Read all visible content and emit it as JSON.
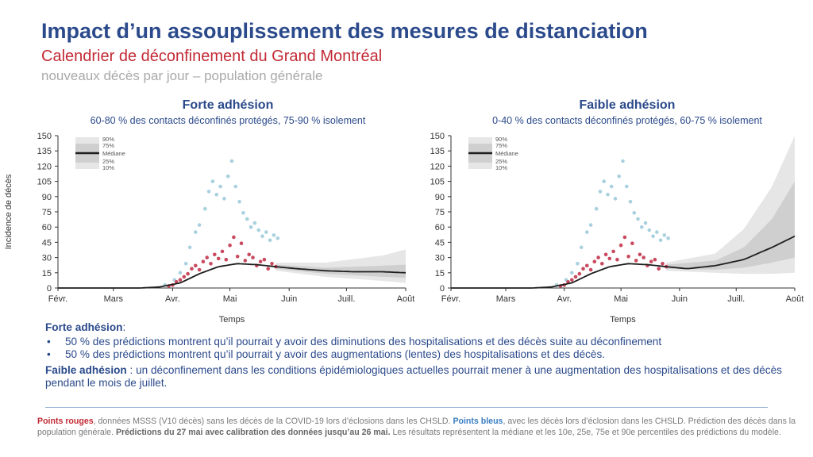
{
  "header": {
    "title": "Impact d’un assouplissement des mesures de distanciation",
    "subtitle": "Calendrier de déconfinement du Grand Montréal",
    "subsubtitle": "nouveaux décès par jour – population générale"
  },
  "colors": {
    "title": "#2b4a8b",
    "subtitle": "#c22a35",
    "red_points": "#c94a5e",
    "blue_points": "#a9d0de",
    "median_line": "#1e1e1e",
    "band_90": "#e6e6e6",
    "band_75": "#cfcfcf",
    "band_50": "#b3b3b3"
  },
  "chart_data": [
    {
      "type": "line",
      "title": "Forte adhésion",
      "subtitle": "60-80 % des contacts déconfinés protégés, 75-90 % isolement",
      "ylabel": "Incidence de décès",
      "xlabel": "Temps",
      "x_ticks": [
        "Févr.",
        "Mars",
        "Avr.",
        "Mai",
        "Juin",
        "Juill.",
        "Août"
      ],
      "y_ticks": [
        0,
        15,
        30,
        45,
        60,
        75,
        90,
        105,
        120,
        135,
        150
      ],
      "ylim": [
        0,
        150
      ],
      "xlim": [
        "2020-02-01",
        "2020-08-01"
      ],
      "legend": {
        "position": "top-left",
        "items": [
          "90%",
          "75%",
          "Médiane",
          "25%",
          "10%"
        ]
      },
      "median": [
        [
          "2020-02-01",
          0
        ],
        [
          "2020-03-15",
          0
        ],
        [
          "2020-03-25",
          1
        ],
        [
          "2020-04-05",
          5
        ],
        [
          "2020-04-15",
          14
        ],
        [
          "2020-04-25",
          21
        ],
        [
          "2020-05-05",
          24
        ],
        [
          "2020-05-15",
          23
        ],
        [
          "2020-05-25",
          21
        ],
        [
          "2020-06-05",
          19
        ],
        [
          "2020-06-20",
          17
        ],
        [
          "2020-07-05",
          16
        ],
        [
          "2020-07-20",
          16
        ],
        [
          "2020-08-01",
          15
        ]
      ],
      "q25": [
        [
          "2020-05-25",
          19
        ],
        [
          "2020-06-20",
          14
        ],
        [
          "2020-07-20",
          11
        ],
        [
          "2020-08-01",
          10
        ]
      ],
      "q75": [
        [
          "2020-05-25",
          23
        ],
        [
          "2020-06-20",
          20
        ],
        [
          "2020-07-20",
          22
        ],
        [
          "2020-08-01",
          23
        ]
      ],
      "q10": [
        [
          "2020-05-25",
          17
        ],
        [
          "2020-06-20",
          11
        ],
        [
          "2020-07-20",
          7
        ],
        [
          "2020-08-01",
          5
        ]
      ],
      "q90": [
        [
          "2020-05-25",
          25
        ],
        [
          "2020-06-20",
          25
        ],
        [
          "2020-07-20",
          32
        ],
        [
          "2020-08-01",
          38
        ]
      ],
      "red_points": [
        [
          "2020-03-30",
          2
        ],
        [
          "2020-04-01",
          3
        ],
        [
          "2020-04-03",
          6
        ],
        [
          "2020-04-05",
          8
        ],
        [
          "2020-04-07",
          11
        ],
        [
          "2020-04-09",
          14
        ],
        [
          "2020-04-11",
          19
        ],
        [
          "2020-04-13",
          22
        ],
        [
          "2020-04-15",
          18
        ],
        [
          "2020-04-17",
          26
        ],
        [
          "2020-04-19",
          30
        ],
        [
          "2020-04-21",
          24
        ],
        [
          "2020-04-23",
          33
        ],
        [
          "2020-04-25",
          29
        ],
        [
          "2020-04-27",
          36
        ],
        [
          "2020-04-29",
          28
        ],
        [
          "2020-05-01",
          42
        ],
        [
          "2020-05-03",
          50
        ],
        [
          "2020-05-05",
          31
        ],
        [
          "2020-05-07",
          44
        ],
        [
          "2020-05-09",
          27
        ],
        [
          "2020-05-11",
          33
        ],
        [
          "2020-05-13",
          30
        ],
        [
          "2020-05-15",
          22
        ],
        [
          "2020-05-17",
          26
        ],
        [
          "2020-05-19",
          28
        ],
        [
          "2020-05-21",
          19
        ],
        [
          "2020-05-23",
          24
        ],
        [
          "2020-05-25",
          21
        ]
      ],
      "blue_points": [
        [
          "2020-03-28",
          3
        ],
        [
          "2020-04-02",
          8
        ],
        [
          "2020-04-05",
          15
        ],
        [
          "2020-04-08",
          24
        ],
        [
          "2020-04-10",
          40
        ],
        [
          "2020-04-13",
          55
        ],
        [
          "2020-04-15",
          62
        ],
        [
          "2020-04-18",
          78
        ],
        [
          "2020-04-20",
          95
        ],
        [
          "2020-04-22",
          105
        ],
        [
          "2020-04-24",
          92
        ],
        [
          "2020-04-26",
          100
        ],
        [
          "2020-04-28",
          88
        ],
        [
          "2020-04-30",
          110
        ],
        [
          "2020-05-02",
          125
        ],
        [
          "2020-05-04",
          100
        ],
        [
          "2020-05-06",
          85
        ],
        [
          "2020-05-08",
          74
        ],
        [
          "2020-05-10",
          68
        ],
        [
          "2020-05-12",
          60
        ],
        [
          "2020-05-14",
          64
        ],
        [
          "2020-05-16",
          57
        ],
        [
          "2020-05-18",
          51
        ],
        [
          "2020-05-20",
          55
        ],
        [
          "2020-05-22",
          47
        ],
        [
          "2020-05-24",
          52
        ],
        [
          "2020-05-26",
          49
        ]
      ]
    },
    {
      "type": "line",
      "title": "Faible adhésion",
      "subtitle": "0-40 % des contacts déconfinés protégés, 60-75 % isolement",
      "ylabel": "",
      "xlabel": "Temps",
      "x_ticks": [
        "Févr.",
        "Mars",
        "Avr.",
        "Mai",
        "Juin",
        "Juill.",
        "Août"
      ],
      "y_ticks": [
        0,
        15,
        30,
        45,
        60,
        75,
        90,
        105,
        120,
        135,
        150
      ],
      "ylim": [
        0,
        150
      ],
      "xlim": [
        "2020-02-01",
        "2020-08-01"
      ],
      "legend": {
        "position": "top-left",
        "items": [
          "90%",
          "75%",
          "Médiane",
          "25%",
          "10%"
        ]
      },
      "median": [
        [
          "2020-02-01",
          0
        ],
        [
          "2020-03-15",
          0
        ],
        [
          "2020-03-25",
          1
        ],
        [
          "2020-04-05",
          5
        ],
        [
          "2020-04-15",
          14
        ],
        [
          "2020-04-25",
          21
        ],
        [
          "2020-05-05",
          24
        ],
        [
          "2020-05-15",
          23
        ],
        [
          "2020-05-25",
          21
        ],
        [
          "2020-06-05",
          19
        ],
        [
          "2020-06-20",
          22
        ],
        [
          "2020-07-05",
          28
        ],
        [
          "2020-07-20",
          40
        ],
        [
          "2020-08-01",
          51
        ]
      ],
      "q25": [
        [
          "2020-05-25",
          19
        ],
        [
          "2020-06-20",
          18
        ],
        [
          "2020-07-05",
          20
        ],
        [
          "2020-07-20",
          25
        ],
        [
          "2020-08-01",
          30
        ]
      ],
      "q75": [
        [
          "2020-05-25",
          23
        ],
        [
          "2020-06-20",
          27
        ],
        [
          "2020-07-05",
          40
        ],
        [
          "2020-07-20",
          68
        ],
        [
          "2020-08-01",
          105
        ]
      ],
      "q10": [
        [
          "2020-05-25",
          17
        ],
        [
          "2020-06-20",
          15
        ],
        [
          "2020-07-05",
          14
        ],
        [
          "2020-07-20",
          14
        ],
        [
          "2020-08-01",
          15
        ]
      ],
      "q90": [
        [
          "2020-05-25",
          25
        ],
        [
          "2020-06-20",
          34
        ],
        [
          "2020-07-05",
          58
        ],
        [
          "2020-07-20",
          100
        ],
        [
          "2020-08-01",
          150
        ]
      ],
      "red_points": [
        [
          "2020-03-30",
          2
        ],
        [
          "2020-04-01",
          3
        ],
        [
          "2020-04-03",
          6
        ],
        [
          "2020-04-05",
          8
        ],
        [
          "2020-04-07",
          11
        ],
        [
          "2020-04-09",
          14
        ],
        [
          "2020-04-11",
          19
        ],
        [
          "2020-04-13",
          22
        ],
        [
          "2020-04-15",
          18
        ],
        [
          "2020-04-17",
          26
        ],
        [
          "2020-04-19",
          30
        ],
        [
          "2020-04-21",
          24
        ],
        [
          "2020-04-23",
          33
        ],
        [
          "2020-04-25",
          29
        ],
        [
          "2020-04-27",
          36
        ],
        [
          "2020-04-29",
          28
        ],
        [
          "2020-05-01",
          42
        ],
        [
          "2020-05-03",
          50
        ],
        [
          "2020-05-05",
          31
        ],
        [
          "2020-05-07",
          44
        ],
        [
          "2020-05-09",
          27
        ],
        [
          "2020-05-11",
          33
        ],
        [
          "2020-05-13",
          30
        ],
        [
          "2020-05-15",
          22
        ],
        [
          "2020-05-17",
          26
        ],
        [
          "2020-05-19",
          28
        ],
        [
          "2020-05-21",
          19
        ],
        [
          "2020-05-23",
          24
        ],
        [
          "2020-05-25",
          21
        ]
      ],
      "blue_points": [
        [
          "2020-03-28",
          3
        ],
        [
          "2020-04-02",
          8
        ],
        [
          "2020-04-05",
          15
        ],
        [
          "2020-04-08",
          24
        ],
        [
          "2020-04-10",
          40
        ],
        [
          "2020-04-13",
          55
        ],
        [
          "2020-04-15",
          62
        ],
        [
          "2020-04-18",
          78
        ],
        [
          "2020-04-20",
          95
        ],
        [
          "2020-04-22",
          105
        ],
        [
          "2020-04-24",
          92
        ],
        [
          "2020-04-26",
          100
        ],
        [
          "2020-04-28",
          88
        ],
        [
          "2020-04-30",
          110
        ],
        [
          "2020-05-02",
          125
        ],
        [
          "2020-05-04",
          100
        ],
        [
          "2020-05-06",
          85
        ],
        [
          "2020-05-08",
          74
        ],
        [
          "2020-05-10",
          68
        ],
        [
          "2020-05-12",
          60
        ],
        [
          "2020-05-14",
          64
        ],
        [
          "2020-05-16",
          57
        ],
        [
          "2020-05-18",
          51
        ],
        [
          "2020-05-20",
          55
        ],
        [
          "2020-05-22",
          47
        ],
        [
          "2020-05-24",
          52
        ],
        [
          "2020-05-26",
          49
        ]
      ]
    }
  ],
  "notes": {
    "forte_label": "Forte adhésion",
    "forte_colon": ":",
    "forte_bullets": [
      "50 % des prédictions montrent qu’il pourrait y avoir des diminutions des hospitalisations et des décès suite au déconfinement",
      "50 % des prédictions montrent qu’il pourrait y avoir des augmentations (lentes) des hospitalisations et des décès."
    ],
    "faible_label": "Faible adhésion",
    "faible_text": " : un déconfinement dans les conditions épidémiologiques actuelles pourrait mener à une augmentation des hospitalisations et des décès pendant le mois de juillet."
  },
  "footer": {
    "red_label": "Points rouges",
    "text1": ", données MSSS (V10 décès) sans les décès de la COVID-19 lors d’éclosions dans les CHSLD. ",
    "blue_label": "Points bleus",
    "text2": ", avec les décès lors d’éclosion dans les CHSLD. Prédiction des décès dans la population générale. ",
    "bold_text": "Prédictions du 27 mai avec calibration des données jusqu’au 26 mai.",
    "text3": " Les résultats représentent la médiane et les 10e, 25e, 75e et 90e percentiles des prédictions du modèle."
  }
}
